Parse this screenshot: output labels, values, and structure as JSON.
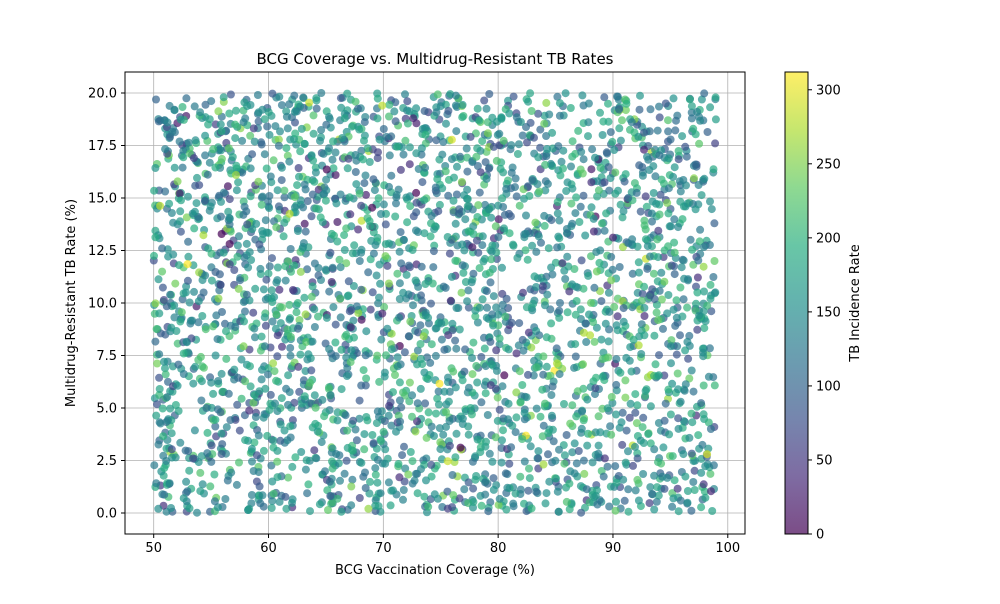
{
  "chart_data": {
    "type": "scatter",
    "title": "BCG Coverage vs. Multidrug-Resistant TB Rates",
    "xlabel": "BCG Vaccination Coverage (%)",
    "ylabel": "Multidrug-Resistant TB Rate (%)",
    "xlim": [
      47.5,
      101.5
    ],
    "ylim": [
      -1.0,
      21.0
    ],
    "x_ticks": [
      50,
      60,
      70,
      80,
      90,
      100
    ],
    "x_tick_labels": [
      "50",
      "60",
      "70",
      "80",
      "90",
      "100"
    ],
    "y_ticks": [
      0.0,
      2.5,
      5.0,
      7.5,
      10.0,
      12.5,
      15.0,
      17.5,
      20.0
    ],
    "y_tick_labels": [
      "0.0",
      "2.5",
      "5.0",
      "7.5",
      "10.0",
      "12.5",
      "15.0",
      "17.5",
      "20.0"
    ],
    "grid": true,
    "point_count_estimate": 3000,
    "x_range": [
      50,
      99
    ],
    "y_range": [
      0,
      20
    ],
    "colorbar": {
      "label": "TB Incidence Rate",
      "colormap": "viridis",
      "range": [
        0,
        312
      ],
      "ticks": [
        0,
        50,
        100,
        150,
        200,
        250,
        300
      ],
      "tick_labels": [
        "0",
        "50",
        "100",
        "150",
        "200",
        "250",
        "300"
      ]
    },
    "marker_alpha": 0.7,
    "series": [
      {
        "points": [
          [
            50.4,
            0.2,
            150
          ],
          [
            51.2,
            18.6,
            140
          ],
          [
            52.8,
            10.5,
            160
          ],
          [
            53.5,
            16.9,
            60
          ],
          [
            54.6,
            5.0,
            110
          ],
          [
            56.1,
            19.8,
            170
          ],
          [
            57.3,
            12.2,
            200
          ],
          [
            58.7,
            2.0,
            130
          ],
          [
            59.4,
            8.4,
            180
          ],
          [
            60.9,
            14.6,
            90
          ],
          [
            62.3,
            19.1,
            150
          ],
          [
            63.6,
            6.2,
            220
          ],
          [
            64.8,
            17.1,
            140
          ],
          [
            65.5,
            11.0,
            30
          ],
          [
            66.9,
            3.1,
            175
          ],
          [
            67.8,
            13.5,
            40
          ],
          [
            68.7,
            0.2,
            260
          ],
          [
            69.9,
            19.4,
            280
          ],
          [
            70.5,
            5.1,
            50
          ],
          [
            71.4,
            1.7,
            40
          ],
          [
            72.6,
            18.8,
            30
          ],
          [
            73.9,
            9.3,
            165
          ],
          [
            74.7,
            15.9,
            190
          ],
          [
            75.8,
            3.2,
            70
          ],
          [
            76.9,
            11.8,
            120
          ],
          [
            78.1,
            7.0,
            210
          ],
          [
            79.2,
            16.4,
            80
          ],
          [
            80.3,
            2.4,
            150
          ],
          [
            81.6,
            7.6,
            40
          ],
          [
            82.4,
            13.3,
            145
          ],
          [
            83.9,
            10.8,
            60
          ],
          [
            84.7,
            18.1,
            170
          ],
          [
            85.6,
            11.9,
            50
          ],
          [
            86.8,
            4.6,
            200
          ],
          [
            87.9,
            19.5,
            135
          ],
          [
            88.6,
            11.5,
            240
          ],
          [
            89.3,
            2.6,
            45
          ],
          [
            90.2,
            15.2,
            175
          ],
          [
            91.5,
            7.9,
            160
          ],
          [
            92.7,
            17.3,
            30
          ],
          [
            93.4,
            0.9,
            110
          ],
          [
            94.8,
            12.7,
            205
          ],
          [
            95.9,
            5.3,
            140
          ],
          [
            96.7,
            19.7,
            190
          ],
          [
            97.5,
            9.4,
            150
          ],
          [
            98.2,
            2.8,
            300
          ],
          [
            98.9,
            17.6,
            60
          ]
        ]
      }
    ]
  }
}
